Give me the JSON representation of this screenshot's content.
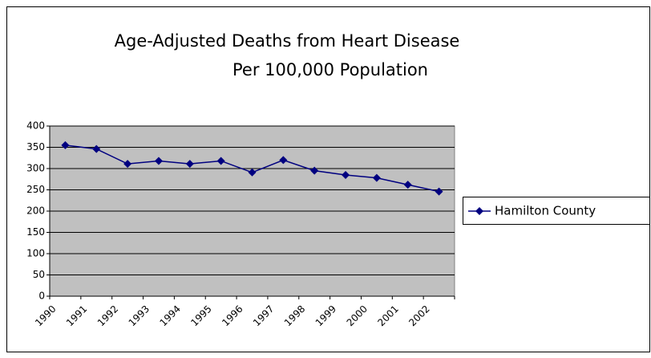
{
  "chart_data": {
    "type": "line",
    "title": [
      "Age-Adjusted Deaths from Heart Disease",
      "Per 100,000 Population"
    ],
    "categories": [
      "1990",
      "1991",
      "1992",
      "1993",
      "1994",
      "1995",
      "1996",
      "1997",
      "1998",
      "1999",
      "2000",
      "2001",
      "2002"
    ],
    "series": [
      {
        "name": "Hamilton County",
        "color": "#000080",
        "values": [
          355,
          346,
          311,
          318,
          311,
          318,
          291,
          320,
          295,
          285,
          278,
          262,
          246
        ]
      }
    ],
    "ylim": [
      0,
      400
    ],
    "yticks": [
      0,
      50,
      100,
      150,
      200,
      250,
      300,
      350,
      400
    ],
    "grid": true,
    "legend": "right",
    "plot_background": "#c0c0c0"
  }
}
